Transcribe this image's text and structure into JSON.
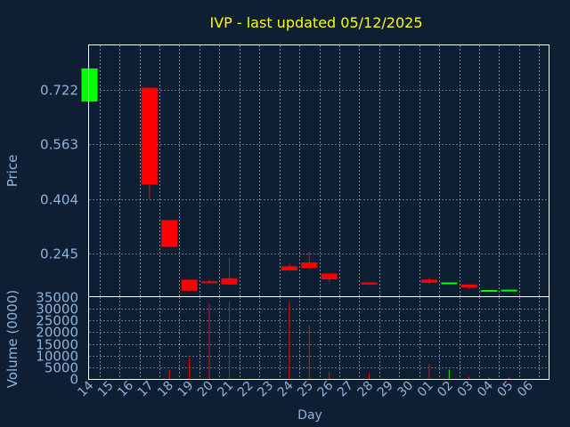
{
  "chart_data": {
    "type": "candlestick",
    "title": "IVP - last updated 05/12/2025",
    "xlabel": "Day",
    "ylabel_price": "Price",
    "ylabel_volume": "Volume (0000)",
    "price_ticks": [
      "0.722",
      "0.563",
      "0.404",
      "0.245"
    ],
    "price_tick_values": [
      0.722,
      0.563,
      0.404,
      0.245
    ],
    "price_ylim": [
      0.122,
      0.85
    ],
    "volume_ticks": [
      "35000",
      "30000",
      "25000",
      "20000",
      "15000",
      "10000",
      "5000",
      "0"
    ],
    "volume_tick_values": [
      35000,
      30000,
      25000,
      20000,
      15000,
      10000,
      5000,
      0
    ],
    "volume_ylim": [
      0,
      35000
    ],
    "grid": true,
    "colors": {
      "up": "#00ff00",
      "down": "#ff0000",
      "grid": "#ffffff",
      "frame": "#ffffff",
      "text": "#8fb3d9",
      "title": "#ffff00",
      "background": "#0f1f33"
    },
    "days": [
      "14",
      "15",
      "16",
      "17",
      "18",
      "19",
      "20",
      "21",
      "22",
      "23",
      "24",
      "25",
      "26",
      "27",
      "28",
      "29",
      "30",
      "01",
      "02",
      "03",
      "04",
      "05",
      "06"
    ],
    "candles": [
      {
        "day": "14",
        "open": 0.687,
        "high": 0.783,
        "low": 0.687,
        "close": 0.783,
        "volume": 0
      },
      {
        "day": "17",
        "open": 0.727,
        "high": 0.727,
        "low": 0.404,
        "close": 0.446,
        "volume": 0
      },
      {
        "day": "18",
        "open": 0.343,
        "high": 0.343,
        "low": 0.263,
        "close": 0.265,
        "volume": 4000
      },
      {
        "day": "19",
        "open": 0.17,
        "high": 0.17,
        "low": 0.137,
        "close": 0.138,
        "volume": 9000
      },
      {
        "day": "20",
        "open": 0.165,
        "high": 0.17,
        "low": 0.16,
        "close": 0.16,
        "volume": 32000
      },
      {
        "day": "21",
        "open": 0.174,
        "high": 0.234,
        "low": 0.154,
        "close": 0.156,
        "volume": 33000
      },
      {
        "day": "24",
        "open": 0.209,
        "high": 0.216,
        "low": 0.194,
        "close": 0.197,
        "volume": 33000
      },
      {
        "day": "25",
        "open": 0.22,
        "high": 0.251,
        "low": 0.201,
        "close": 0.204,
        "volume": 23000
      },
      {
        "day": "26",
        "open": 0.188,
        "high": 0.188,
        "low": 0.163,
        "close": 0.171,
        "volume": 3000
      },
      {
        "day": "28",
        "open": 0.162,
        "high": 0.162,
        "low": 0.154,
        "close": 0.156,
        "volume": 2500
      },
      {
        "day": "01",
        "open": 0.17,
        "high": 0.175,
        "low": 0.158,
        "close": 0.161,
        "volume": 6500
      },
      {
        "day": "02",
        "open": 0.159,
        "high": 0.162,
        "low": 0.159,
        "close": 0.162,
        "volume": 4000
      },
      {
        "day": "03",
        "open": 0.156,
        "high": 0.156,
        "low": 0.143,
        "close": 0.147,
        "volume": 1000
      },
      {
        "day": "04",
        "open": 0.137,
        "high": 0.14,
        "low": 0.137,
        "close": 0.14,
        "volume": 500
      },
      {
        "day": "05",
        "open": 0.138,
        "high": 0.141,
        "low": 0.138,
        "close": 0.141,
        "volume": 500
      }
    ]
  }
}
